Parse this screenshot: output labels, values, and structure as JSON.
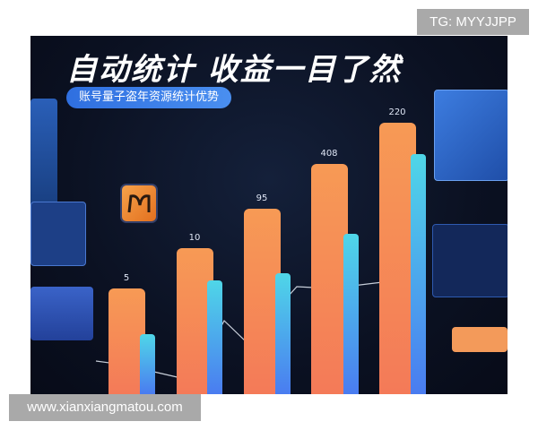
{
  "banner": {
    "title": "自动统计 收益一目了然",
    "subtitle": "账号量子盗年资源统计优势"
  },
  "bars": [
    {
      "label": "5"
    },
    {
      "label": "10"
    },
    {
      "label": "95"
    },
    {
      "label": "408"
    },
    {
      "label": "220"
    }
  ],
  "colors": {
    "orange_bar": "#f5855a",
    "blue_bar": "#4aa8f0",
    "background": "#0b1122"
  },
  "watermarks": {
    "top_right": "TG: MYYJJPP",
    "bottom_left": "www.xianxiangmatou.com"
  }
}
